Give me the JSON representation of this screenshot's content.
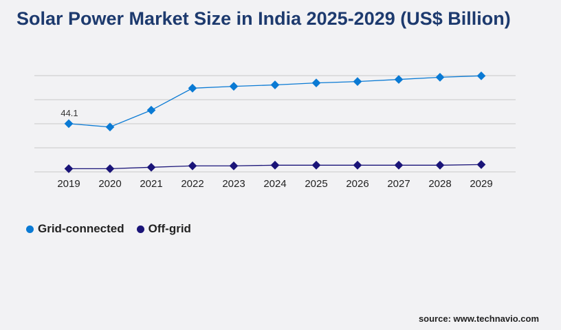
{
  "title": "Solar Power Market Size in India 2025-2029 (US$ Billion)",
  "source": "source: www.technavio.com",
  "chart_data": {
    "type": "line",
    "title": "Solar Power Market Size in India 2025-2029 (US$ Billion)",
    "x": [
      "2019",
      "2020",
      "2021",
      "2022",
      "2023",
      "2024",
      "2025",
      "2026",
      "2027",
      "2028",
      "2029"
    ],
    "ylim": [
      0,
      88
    ],
    "grid": true,
    "legend": "bottom-left",
    "series": [
      {
        "name": "Grid-connected",
        "color": "#0a7ad4",
        "values": [
          44.1,
          41.0,
          56.4,
          76.5,
          78.2,
          79.5,
          81.3,
          82.6,
          84.5,
          86.5,
          87.8
        ],
        "data_labels": {
          "0": "44.1"
        }
      },
      {
        "name": "Off-grid",
        "color": "#1a1478",
        "values": [
          2.9,
          2.9,
          4.2,
          5.5,
          5.5,
          6.1,
          6.1,
          6.1,
          6.1,
          6.1,
          6.7
        ]
      }
    ]
  }
}
